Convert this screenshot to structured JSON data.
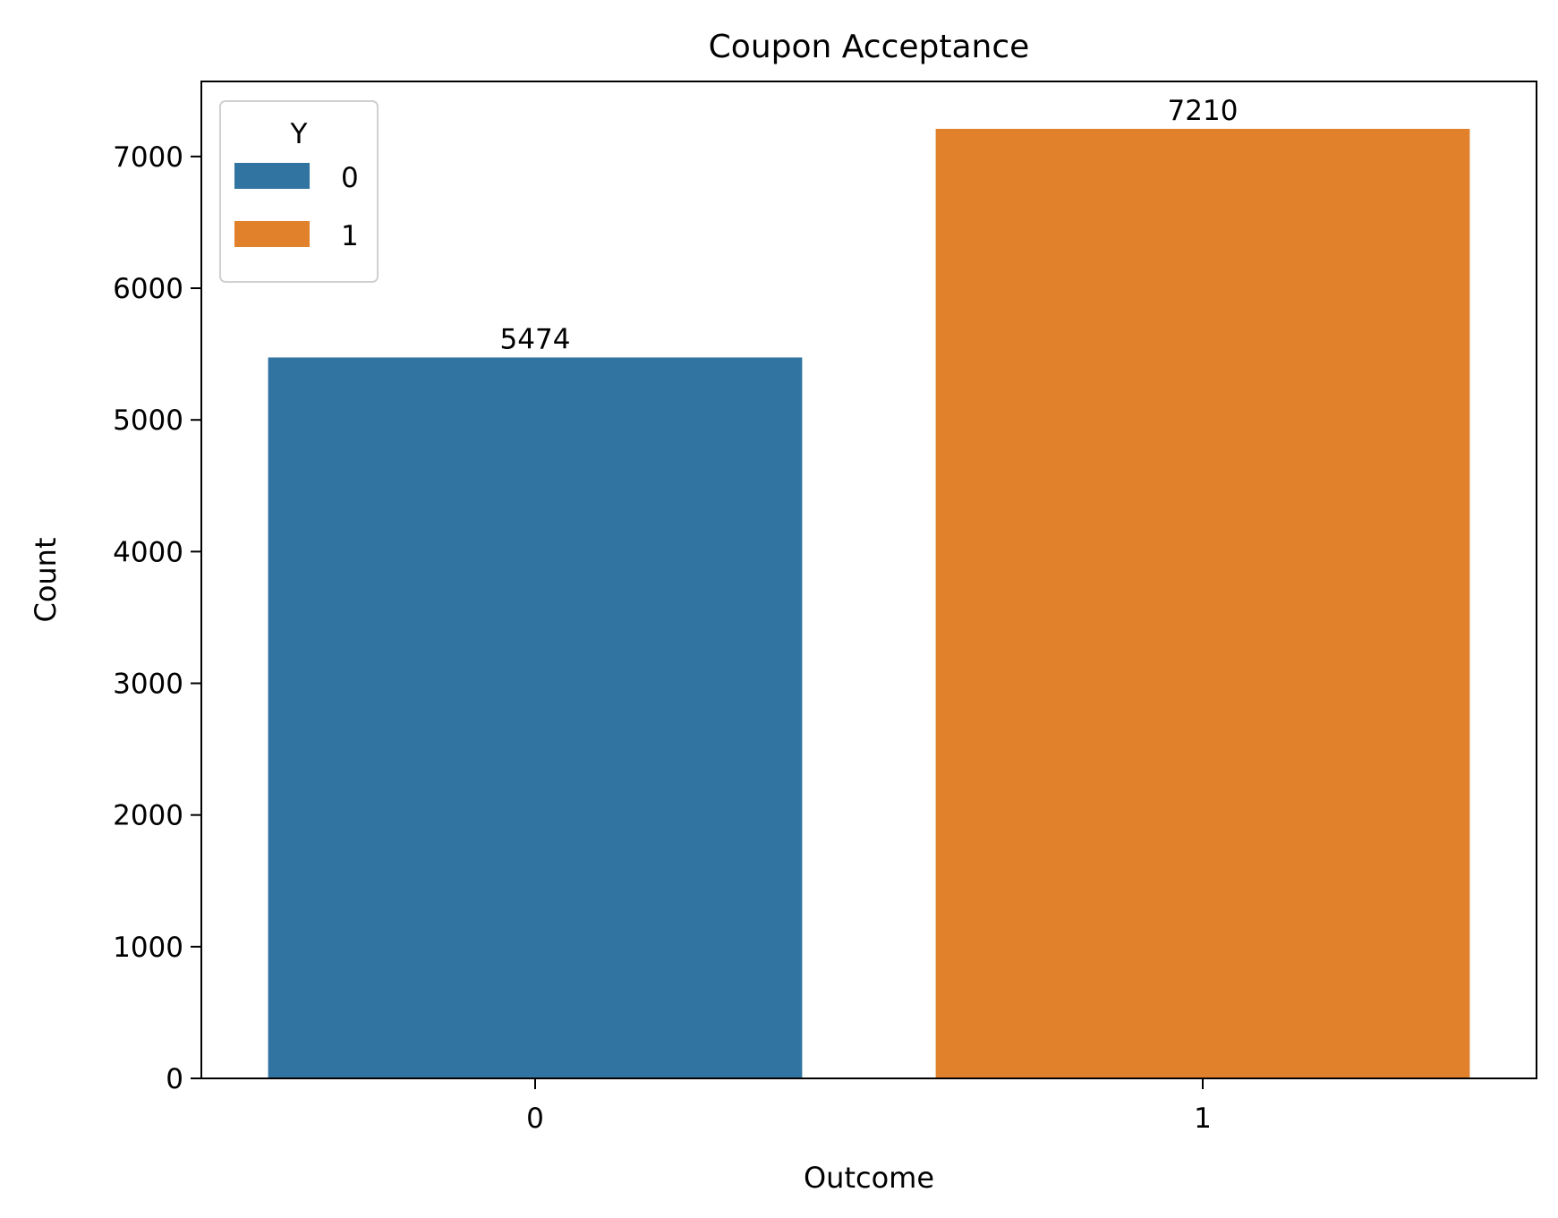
{
  "chart_data": {
    "type": "bar",
    "title": "Coupon Acceptance",
    "xlabel": "Outcome",
    "ylabel": "Count",
    "categories": [
      "0",
      "1"
    ],
    "values": [
      5474,
      7210
    ],
    "data_labels": [
      "5474",
      "7210"
    ],
    "colors": [
      "#3274a1",
      "#e1812c"
    ],
    "ylim": [
      0,
      7570
    ],
    "yticks": [
      0,
      1000,
      2000,
      3000,
      4000,
      5000,
      6000,
      7000
    ],
    "ytick_labels": [
      "0",
      "1000",
      "2000",
      "3000",
      "4000",
      "5000",
      "6000",
      "7000"
    ],
    "grid": false,
    "legend": {
      "title": "Y",
      "placement": "top-left",
      "entries": [
        {
          "label": "0",
          "color": "#3274a1"
        },
        {
          "label": "1",
          "color": "#e1812c"
        }
      ]
    }
  }
}
